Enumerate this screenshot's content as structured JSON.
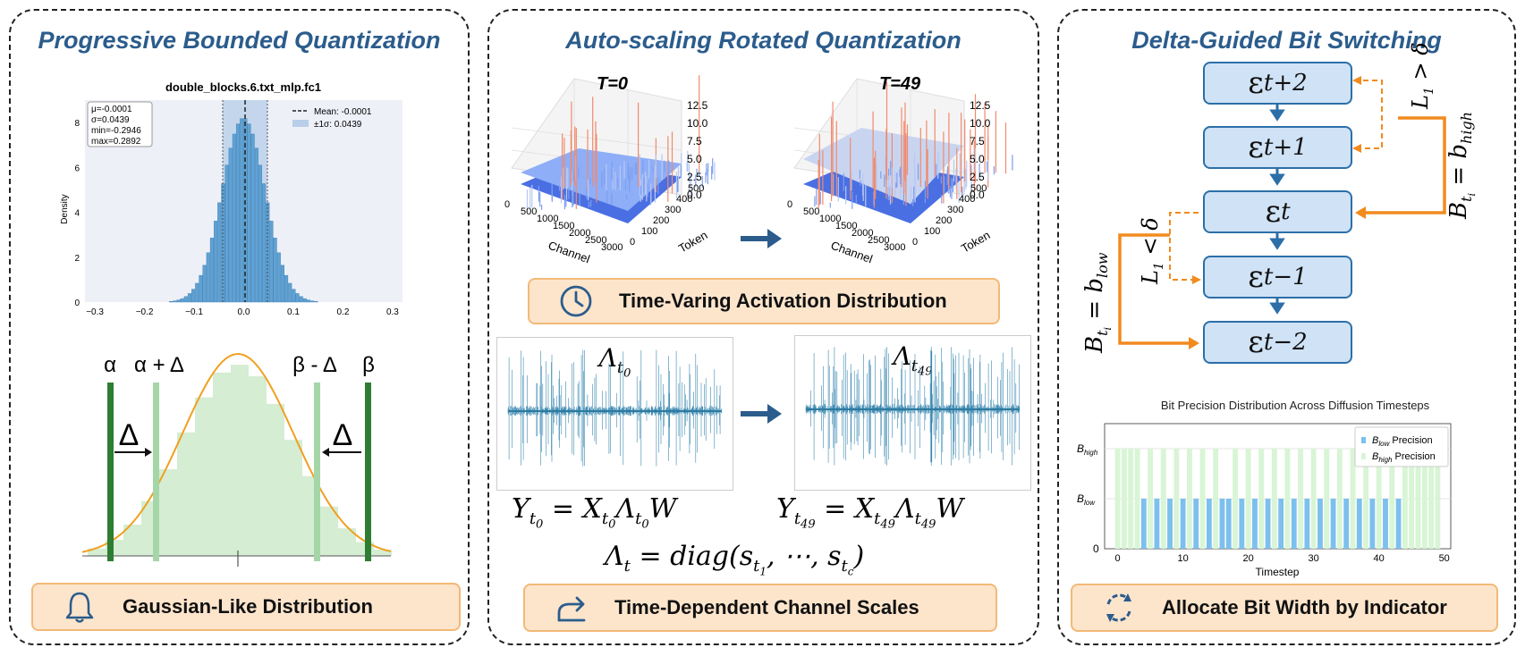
{
  "panels": {
    "left": {
      "title": "Progressive Bounded Quantization",
      "caption": "Gaussian-Like Distribution",
      "caption_icon": "bell-icon"
    },
    "middle": {
      "title": "Auto-scaling Rotated Quantization",
      "caption_top": "Time-Varing Activation Distribution",
      "caption_top_icon": "clock-icon",
      "caption_bottom": "Time-Dependent Channel Scales",
      "caption_bottom_icon": "share-arrow-icon"
    },
    "right": {
      "title": "Delta-Guided Bit Switching",
      "caption": "Allocate Bit Width by Indicator",
      "caption_icon": "refresh-icon"
    }
  },
  "histogram": {
    "title": "double_blocks.6.txt_mlp.fc1",
    "ylabel": "Density",
    "stats": [
      "μ=-0.0001",
      "σ=0.0439",
      "min=-0.2946",
      "max=0.2892"
    ],
    "legend": [
      "Mean: -0.0001",
      "±1σ: 0.0439"
    ],
    "xticks": [
      "−0.3",
      "−0.2",
      "−0.1",
      "0.0",
      "0.1",
      "0.2",
      "0.3"
    ],
    "yticks": [
      "0",
      "2",
      "4",
      "6",
      "8"
    ],
    "bar_color": "#5fa2d3"
  },
  "bounds": {
    "alpha": "α",
    "alpha_plus_delta": "α + Δ",
    "beta_minus_delta": "β - Δ",
    "beta": "β",
    "delta": "Δ"
  },
  "surface_plots": {
    "t0_label": "T=0",
    "t49_label": "T=49",
    "zticks": [
      "0.0",
      "2.5",
      "5.0",
      "7.5",
      "10.0",
      "12.5"
    ],
    "channel_ticks": [
      "0",
      "500",
      "1000",
      "1500",
      "2000",
      "2500",
      "3000"
    ],
    "token_ticks": [
      "0",
      "100",
      "200",
      "300",
      "400",
      "500"
    ],
    "channel_label": "Channel",
    "token_label": "Token"
  },
  "equations": {
    "lambda_t0": "Λ",
    "lambda_t0_sub": "t",
    "lambda_t0_subsub": "0",
    "lambda_t49": "Λ",
    "lambda_t49_sub": "t",
    "lambda_t49_subsub": "49",
    "y_t0": "Y",
    "x_t0": "X",
    "w": "W",
    "diag_lhs": "Λ",
    "diag_rhs": "diag(s",
    "diag_mid": ", ⋯, s",
    "diag_end": ")"
  },
  "bit_switching": {
    "nodes": [
      {
        "eps": "ε",
        "sub": "t+2"
      },
      {
        "eps": "ε",
        "sub": "t+1"
      },
      {
        "eps": "ε",
        "sub": "t"
      },
      {
        "eps": "ε",
        "sub": "t−1"
      },
      {
        "eps": "ε",
        "sub": "t−2"
      }
    ],
    "cond_high": "L",
    "cond_high_sub": "1",
    "cond_high_op": " > δ",
    "cond_low": "L",
    "cond_low_sub": "1",
    "cond_low_op": " < δ",
    "assign_high": "B",
    "assign_high_rhs": " = b",
    "assign_high_sub": "high",
    "assign_low": "B",
    "assign_low_rhs": " = b",
    "assign_low_sub": "low",
    "orange": "#f28a1e",
    "blue": "#2c6fa8"
  },
  "bit_chart": {
    "title": "Bit Precision Distribution Across Diffusion Timesteps",
    "xlabel": "Timestep",
    "xticks": [
      "0",
      "10",
      "20",
      "30",
      "40",
      "50"
    ],
    "ytick_high": "B",
    "ytick_high_sub": "high",
    "ytick_low": "B",
    "ytick_low_sub": "low",
    "ytick_zero": "0",
    "legend_low": "Precision",
    "legend_low_sym": "B",
    "legend_low_sub": "low",
    "legend_high": "Precision",
    "legend_high_sym": "B",
    "legend_high_sub": "high",
    "low_color": "#7cc0ee",
    "high_color": "#d8f5d5"
  },
  "chart_data": {
    "type": "bar",
    "title": "Bit Precision Distribution Across Diffusion Timesteps",
    "xlabel": "Timestep",
    "ylabel": "",
    "x": [
      0,
      1,
      2,
      3,
      4,
      5,
      6,
      7,
      8,
      9,
      10,
      11,
      12,
      13,
      14,
      15,
      16,
      17,
      18,
      19,
      20,
      21,
      22,
      23,
      24,
      25,
      26,
      27,
      28,
      29,
      30,
      31,
      32,
      33,
      34,
      35,
      36,
      37,
      38,
      39,
      40,
      41,
      42,
      43,
      44,
      45,
      46,
      47,
      48,
      49
    ],
    "series": [
      {
        "name": "B_low Precision",
        "values": [
          0,
          0,
          0,
          0,
          1,
          0,
          1,
          0,
          1,
          0,
          1,
          0,
          1,
          0,
          1,
          0,
          1,
          1,
          0,
          1,
          0,
          1,
          0,
          1,
          0,
          1,
          0,
          1,
          0,
          1,
          0,
          1,
          0,
          1,
          0,
          1,
          0,
          1,
          0,
          1,
          0,
          1,
          0,
          1,
          0,
          0,
          0,
          0,
          0,
          0
        ]
      },
      {
        "name": "B_high Precision",
        "values": [
          1,
          1,
          1,
          1,
          0,
          1,
          0,
          1,
          0,
          1,
          0,
          1,
          0,
          1,
          0,
          1,
          0,
          0,
          1,
          0,
          1,
          0,
          1,
          0,
          1,
          0,
          1,
          0,
          1,
          0,
          1,
          0,
          1,
          0,
          1,
          0,
          1,
          0,
          1,
          0,
          1,
          0,
          1,
          0,
          1,
          1,
          1,
          1,
          1,
          1
        ]
      }
    ],
    "xlim": [
      -2,
      51
    ],
    "legend": "top-right"
  }
}
